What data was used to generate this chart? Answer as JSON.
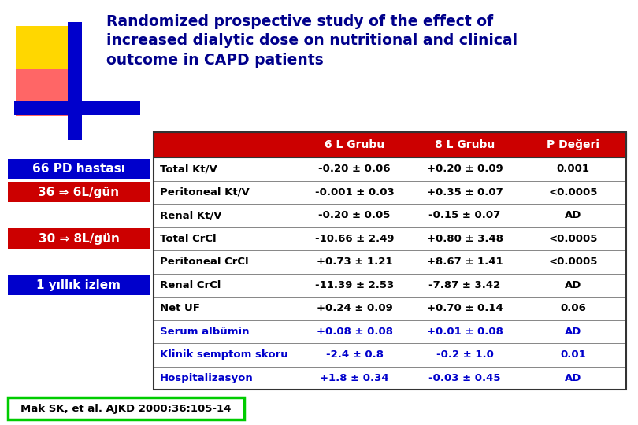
{
  "title_line1": "Randomized prospective study of the effect of",
  "title_line2": "increased dialytic dose on nutritional and clinical",
  "title_line3": "outcome in CAPD patients",
  "title_color": "#00008B",
  "bg_color": "#FFFFFF",
  "header_row": [
    "",
    "6 L Grubu",
    "8 L Grubu",
    "P Değeri"
  ],
  "header_bg": "#CC0000",
  "header_text_color": "#FFFFFF",
  "table_rows": [
    [
      "Total Kt/V",
      "-0.20 ± 0.06",
      "+0.20 ± 0.09",
      "0.001"
    ],
    [
      "Peritoneal Kt/V",
      "-0.001 ± 0.03",
      "+0.35 ± 0.07",
      "<0.0005"
    ],
    [
      "Renal Kt/V",
      "-0.20 ± 0.05",
      "-0.15 ± 0.07",
      "AD"
    ],
    [
      "Total CrCl",
      "-10.66 ± 2.49",
      "+0.80 ± 3.48",
      "<0.0005"
    ],
    [
      "Peritoneal CrCl",
      "+0.73 ± 1.21",
      "+8.67 ± 1.41",
      "<0.0005"
    ],
    [
      "Renal CrCl",
      "-11.39 ± 2.53",
      "-7.87 ± 3.42",
      "AD"
    ],
    [
      "Net UF",
      "+0.24 ± 0.09",
      "+0.70 ± 0.14",
      "0.06"
    ],
    [
      "Serum albümin",
      "+0.08 ± 0.08",
      "+0.01 ± 0.08",
      "AD"
    ],
    [
      "Klinik semptom skoru",
      "-2.4 ± 0.8",
      "-0.2 ± 1.0",
      "0.01"
    ],
    [
      "Hospitalizasyon",
      "+1.8 ± 0.34",
      "-0.03 ± 0.45",
      "AD"
    ]
  ],
  "blue_rows": [
    7,
    8,
    9
  ],
  "blue_text_color": "#0000CC",
  "black_text_color": "#000000",
  "left_boxes": [
    {
      "text": "66 PD hastası",
      "bg": "#0000CC",
      "text_color": "#FFFFFF",
      "row": 0
    },
    {
      "text": "36 ⇒ 6L/gün",
      "bg": "#CC0000",
      "text_color": "#FFFFFF",
      "row": 1
    },
    {
      "text": "30 ⇒ 8L/gün",
      "bg": "#CC0000",
      "text_color": "#FFFFFF",
      "row": 3
    },
    {
      "text": "1 yıllık izlem",
      "bg": "#0000CC",
      "text_color": "#FFFFFF",
      "row": 5
    }
  ],
  "citation": "Mak SK, et al. AJKD 2000;36:105-14",
  "citation_color": "#000000",
  "citation_border": "#00CC00",
  "logo_yellow": "#FFD700",
  "logo_red": "#FF6666",
  "logo_blue": "#0000CC"
}
